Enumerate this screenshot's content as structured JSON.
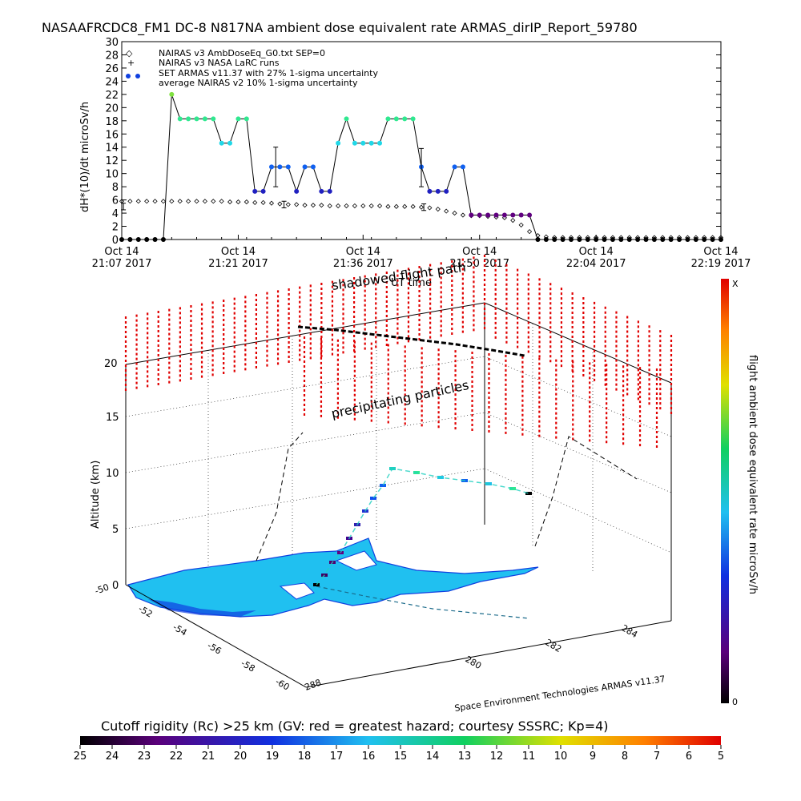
{
  "title": "NASAAFRCDC8_FM1 DC-8   N817NA ambient dose equivalent rate ARMAS_dirIP_Report_59780",
  "chart_data": [
    {
      "type": "line",
      "ylabel": "dH*(10)/dt microSv/h",
      "xlabel": "UT time",
      "ylim": [
        0,
        30
      ],
      "yticks": [
        0,
        2,
        4,
        6,
        8,
        10,
        12,
        14,
        16,
        18,
        20,
        22,
        24,
        26,
        28,
        30
      ],
      "xlim": [
        0,
        72
      ],
      "xtick_positions": [
        0,
        14,
        29,
        43,
        57,
        72
      ],
      "xticks_line1": [
        "Oct 14",
        "Oct 14",
        "Oct 14",
        "Oct 14",
        "Oct 14",
        "Oct 14"
      ],
      "xticks_line2": [
        "21:07 2017",
        "21:21 2017",
        "21:36 2017",
        "21:50 2017",
        "22:04 2017",
        "22:19 2017"
      ],
      "legend": [
        {
          "symbol": "◇",
          "label": "NAIRAS v3 AmbDoseEq_G0.txt SEP=0"
        },
        {
          "symbol": "+",
          "label": "NAIRAS v3 NASA LaRC runs"
        },
        {
          "symbol": "●",
          "label": "SET ARMAS v11.37 with 27% 1-sigma uncertainty"
        },
        {
          "symbol": "",
          "label": "average NAIRAS v2 10% 1-sigma uncertainty"
        }
      ],
      "series": [
        {
          "name": "SET ARMAS v11.37 with 27% 1-sigma uncertainty",
          "x": [
            0,
            1,
            2,
            3,
            4,
            5,
            6,
            7,
            8,
            9,
            10,
            11,
            12,
            13,
            14,
            15,
            16,
            17,
            18,
            19,
            20,
            21,
            22,
            23,
            24,
            25,
            26,
            27,
            28,
            29,
            30,
            31,
            32,
            33,
            34,
            35,
            36,
            37,
            38,
            39,
            40,
            41,
            42,
            43,
            44,
            45,
            46,
            47,
            48,
            49,
            50,
            51,
            52,
            53,
            54,
            55,
            56,
            57,
            58,
            59,
            60,
            61,
            62,
            63,
            64,
            65,
            66,
            67,
            68,
            69,
            70,
            71,
            72
          ],
          "y": [
            0,
            0,
            0,
            0,
            0,
            0,
            22,
            18.3,
            18.3,
            18.3,
            18.3,
            18.3,
            14.6,
            14.6,
            18.3,
            18.3,
            7.3,
            7.3,
            11,
            11,
            11,
            7.3,
            11,
            11,
            7.3,
            7.3,
            14.6,
            18.3,
            14.6,
            14.6,
            14.6,
            14.6,
            18.3,
            18.3,
            18.3,
            18.3,
            11,
            7.3,
            7.3,
            7.3,
            11,
            11,
            3.7,
            3.7,
            3.7,
            3.7,
            3.7,
            3.7,
            3.7,
            3.7,
            0,
            0,
            0,
            0,
            0,
            0,
            0,
            0,
            0,
            0,
            0,
            0,
            0,
            0,
            0,
            0,
            0,
            0,
            0,
            0,
            0,
            0,
            0
          ]
        },
        {
          "name": "NAIRAS v3 AmbDoseEq_G0.txt SEP=0",
          "x": [
            0,
            1,
            2,
            3,
            4,
            5,
            6,
            7,
            8,
            9,
            10,
            11,
            12,
            13,
            14,
            15,
            16,
            17,
            18,
            19,
            20,
            21,
            22,
            23,
            24,
            25,
            26,
            27,
            28,
            29,
            30,
            31,
            32,
            33,
            34,
            35,
            36,
            37,
            38,
            39,
            40,
            41,
            42,
            43,
            44,
            45,
            46,
            47,
            48,
            49,
            50,
            51,
            52,
            53,
            54,
            55,
            56,
            57,
            58,
            59,
            60,
            61,
            62,
            63,
            64,
            65,
            66,
            67,
            68,
            69,
            70,
            71,
            72
          ],
          "y": [
            5.8,
            5.8,
            5.8,
            5.8,
            5.8,
            5.8,
            5.8,
            5.8,
            5.8,
            5.8,
            5.8,
            5.8,
            5.8,
            5.7,
            5.7,
            5.7,
            5.6,
            5.6,
            5.5,
            5.4,
            5.3,
            5.3,
            5.2,
            5.2,
            5.2,
            5.1,
            5.1,
            5.1,
            5.1,
            5.1,
            5.1,
            5.1,
            5.0,
            5.0,
            5.0,
            5.0,
            4.9,
            4.8,
            4.6,
            4.3,
            4.0,
            3.7,
            3.6,
            3.6,
            3.5,
            3.4,
            3.3,
            2.9,
            2.2,
            1.2,
            0.6,
            0.4,
            0.3,
            0.3,
            0.3,
            0.3,
            0.3,
            0.3,
            0.3,
            0.3,
            0.3,
            0.3,
            0.3,
            0.3,
            0.3,
            0.3,
            0.3,
            0.3,
            0.3,
            0.3,
            0.3,
            0.3,
            0.3
          ]
        }
      ],
      "error_bars": [
        {
          "x": 0.2,
          "y": 5.0,
          "low": 4.5,
          "high": 5.5
        },
        {
          "x": 18.5,
          "y": 11.0,
          "low": 8.0,
          "high": 14.0
        },
        {
          "x": 19.5,
          "y": 5.3,
          "low": 4.8,
          "high": 5.8
        },
        {
          "x": 36.0,
          "y": 11.0,
          "low": 8.0,
          "high": 13.8
        },
        {
          "x": 36.3,
          "y": 4.9,
          "low": 4.4,
          "high": 5.4
        }
      ]
    },
    {
      "type": "3d-trajectory",
      "zlabel": "Altitude (km)",
      "zticks": [
        "0",
        "5",
        "10",
        "15",
        "20"
      ],
      "lat_ticks": [
        "-50",
        "-52",
        "-54",
        "-56",
        "-58",
        "-60"
      ],
      "lon_ticks": [
        "288",
        "280",
        "282",
        "284"
      ],
      "annotations": [
        "shadowed flight path",
        "precipitating particles"
      ],
      "credit": "Space Environment Technologies ARMAS v11.37",
      "colorbar": {
        "label": "flight ambient dose equivalent rate microSv/h",
        "top": "X",
        "bottom": "0"
      }
    }
  ],
  "rigidity_bar": {
    "label": "Cutoff rigidity (Rc) >25 km (GV: red = greatest hazard; courtesy SSSRC; Kp=4)",
    "ticks": [
      "25",
      "24",
      "23",
      "22",
      "21",
      "20",
      "19",
      "18",
      "17",
      "16",
      "15",
      "14",
      "13",
      "12",
      "11",
      "10",
      "9",
      "8",
      "7",
      "6",
      "5"
    ]
  },
  "colors": {
    "axis": "#000000",
    "particles": "#e00000",
    "continent": "#20c0f0",
    "continent_edge": "#1040e0"
  }
}
